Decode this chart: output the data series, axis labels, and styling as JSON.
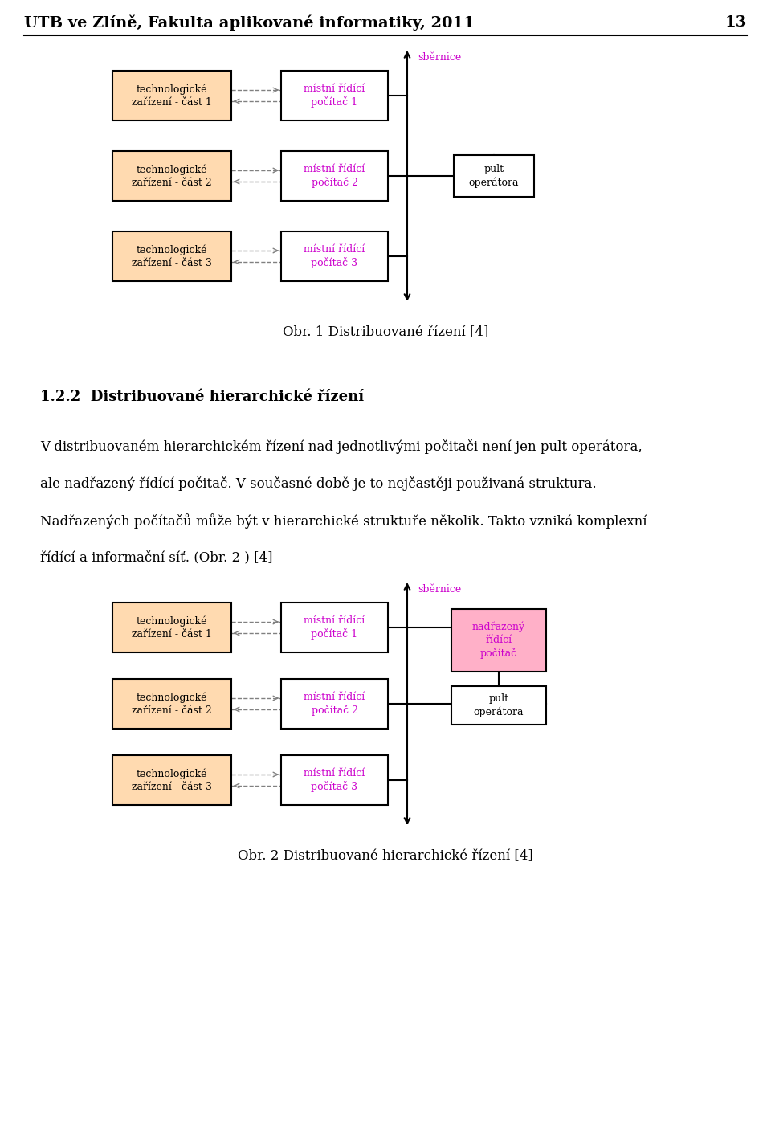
{
  "header_text": "UTB ve Zlíně, Fakulta aplikované informatiky, 2011",
  "header_page": "13",
  "fig_caption1": "Obr. 1 Distribuované řízení [4]",
  "section_title": "1.2.2  Distribuované hierarchické řízení",
  "paragraph1": "V distribuovaném hierarchickém řízení nad jednotlivými počitači není jen pult operátora,",
  "paragraph2": "ale nadřazený řídící počitač. V současné době je to nejčastěji použivaná struktura.",
  "paragraph3": "Nadřazených počítačů může být v hierarchické struktuře několik. Takto vzniká komplexní",
  "paragraph4": "řídící a informační síť. (Obr. 2 ) [4]",
  "fig_caption2": "Obr. 2 Distribuované hierarchické řízení [4]",
  "diag1_tech_labels": [
    "technologické\nzařízení - část 1",
    "technologické\nzařízení - část 2",
    "technologické\nzařízení - část 3"
  ],
  "diag1_pc_labels": [
    "místní řídící\npočítač 1",
    "místní řídící\npočítač 2",
    "místní řídící\npočítač 3"
  ],
  "diag1_bus_label": "sběrnice",
  "diag1_pult_label": "pult\noperátora",
  "diag2_tech_labels": [
    "technologické\nzařízení - část 1",
    "technologické\nzařízení - část 2",
    "technologické\nzařízení - část 3"
  ],
  "diag2_pc_labels": [
    "místní řídící\npočítač 1",
    "místní řídící\npočítač 2",
    "místní řídící\npočítač 3"
  ],
  "diag2_bus_label": "sběrnice",
  "diag2_nadrazeny_label": "nadřazený\nřídící\npočítač",
  "diag2_pult_label": "pult\noperátora",
  "tech_box_color": "#FFDAB0",
  "pc_box_color": "#FFFFFF",
  "nadrazeny_box_color": "#FFB0C8",
  "pult_box_color": "#FFFFFF",
  "box_edge_color": "#000000",
  "pc_text_color": "#CC00CC",
  "tech_text_color": "#000000",
  "bus_color": "#CC00CC",
  "arrow_color": "#808080",
  "background_color": "#FFFFFF"
}
